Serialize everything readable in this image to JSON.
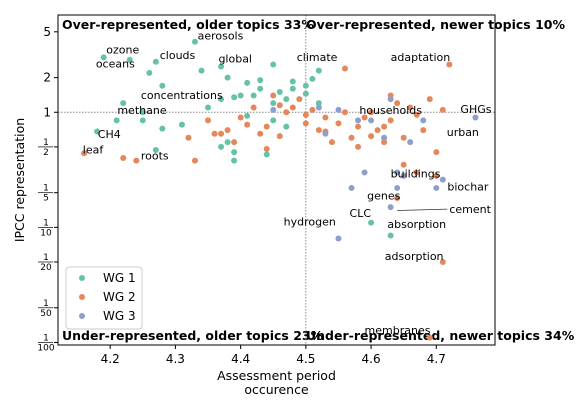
{
  "chart_data": {
    "type": "scatter",
    "xlabel": "Assessment period\noccurence",
    "ylabel": "IPCC representation",
    "xlim": [
      4.12,
      4.79
    ],
    "ylim": [
      0.0095,
      7.0
    ],
    "yscale": "log",
    "x_ticks": [
      4.2,
      4.3,
      4.4,
      4.5,
      4.6,
      4.7
    ],
    "x_tick_labels": [
      "4.2",
      "4.3",
      "4.4",
      "4.5",
      "4.6",
      "4.7"
    ],
    "y_ticks": [
      {
        "value": 5,
        "label": "5"
      },
      {
        "value": 2,
        "label": "2"
      },
      {
        "value": 1,
        "label": "1"
      },
      {
        "value": 0.5,
        "num": "1",
        "den": "2"
      },
      {
        "value": 0.2,
        "num": "1",
        "den": "5"
      },
      {
        "value": 0.1,
        "num": "1",
        "den": "10"
      },
      {
        "value": 0.05,
        "num": "1",
        "den": "20"
      },
      {
        "value": 0.02,
        "num": "1",
        "den": "50"
      },
      {
        "value": 0.01,
        "num": "1",
        "den": "100"
      }
    ],
    "reference_lines": {
      "x": 4.5,
      "y": 1
    },
    "grid": false,
    "legend_position": "lower-left",
    "quadrant_labels": [
      "Over-represented, older topics 33%",
      "Over-represented, newer topics 10%",
      "Under-represented, older topics 23%",
      "Under-represented, newer topics 34%"
    ],
    "colors": {
      "WG 1": "#66c2a5",
      "WG 2": "#e5865b",
      "WG 3": "#8da0cb"
    },
    "series": [
      {
        "name": "WG 1",
        "color": "#66c2a5",
        "points": [
          [
            4.19,
            3.0
          ],
          [
            4.23,
            2.85
          ],
          [
            4.27,
            2.75
          ],
          [
            4.26,
            2.2
          ],
          [
            4.28,
            1.7
          ],
          [
            4.33,
            4.1
          ],
          [
            4.34,
            2.3
          ],
          [
            4.37,
            2.5
          ],
          [
            4.38,
            2.0
          ],
          [
            4.41,
            1.8
          ],
          [
            4.43,
            1.9
          ],
          [
            4.45,
            2.6
          ],
          [
            4.46,
            1.5
          ],
          [
            4.48,
            1.85
          ],
          [
            4.5,
            1.7
          ],
          [
            4.52,
            2.3
          ],
          [
            4.51,
            1.95
          ],
          [
            4.22,
            1.2
          ],
          [
            4.25,
            1.0
          ],
          [
            4.28,
            0.72
          ],
          [
            4.31,
            0.78
          ],
          [
            4.35,
            1.1
          ],
          [
            4.37,
            1.3
          ],
          [
            4.39,
            1.35
          ],
          [
            4.4,
            1.4
          ],
          [
            4.42,
            1.4
          ],
          [
            4.43,
            1.6
          ],
          [
            4.45,
            1.2
          ],
          [
            4.47,
            1.3
          ],
          [
            4.48,
            1.6
          ],
          [
            4.5,
            1.45
          ],
          [
            4.52,
            1.2
          ],
          [
            4.18,
            0.68
          ],
          [
            4.21,
            0.85
          ],
          [
            4.25,
            0.85
          ],
          [
            4.37,
            0.5
          ],
          [
            4.38,
            0.55
          ],
          [
            4.39,
            0.45
          ],
          [
            4.39,
            0.38
          ],
          [
            4.44,
            0.43
          ],
          [
            4.45,
            0.85
          ],
          [
            4.47,
            0.75
          ],
          [
            4.27,
            0.47
          ],
          [
            4.41,
            0.93
          ],
          [
            4.6,
            0.11
          ],
          [
            4.63,
            0.085
          ]
        ]
      },
      {
        "name": "WG 2",
        "color": "#e5865b",
        "points": [
          [
            4.16,
            0.44
          ],
          [
            4.22,
            0.4
          ],
          [
            4.24,
            0.38
          ],
          [
            4.32,
            0.6
          ],
          [
            4.35,
            0.85
          ],
          [
            4.37,
            0.65
          ],
          [
            4.38,
            0.7
          ],
          [
            4.39,
            0.55
          ],
          [
            4.4,
            0.9
          ],
          [
            4.42,
            1.1
          ],
          [
            4.43,
            0.65
          ],
          [
            4.44,
            0.75
          ],
          [
            4.45,
            1.4
          ],
          [
            4.46,
            1.15
          ],
          [
            4.47,
            1.0
          ],
          [
            4.48,
            1.1
          ],
          [
            4.49,
            1.3
          ],
          [
            4.5,
            0.95
          ],
          [
            4.5,
            0.8
          ],
          [
            4.51,
            1.05
          ],
          [
            4.52,
            0.7
          ],
          [
            4.53,
            0.9
          ],
          [
            4.54,
            0.55
          ],
          [
            4.55,
            0.8
          ],
          [
            4.56,
            1.0
          ],
          [
            4.56,
            2.4
          ],
          [
            4.57,
            0.6
          ],
          [
            4.58,
            0.75
          ],
          [
            4.59,
            0.9
          ],
          [
            4.6,
            1.0
          ],
          [
            4.61,
            0.7
          ],
          [
            4.62,
            0.55
          ],
          [
            4.63,
            1.4
          ],
          [
            4.63,
            0.85
          ],
          [
            4.64,
            1.2
          ],
          [
            4.65,
            0.6
          ],
          [
            4.66,
            1.1
          ],
          [
            4.67,
            0.95
          ],
          [
            4.68,
            0.7
          ],
          [
            4.69,
            1.3
          ],
          [
            4.7,
            0.45
          ],
          [
            4.71,
            1.05
          ],
          [
            4.72,
            2.6
          ],
          [
            4.33,
            0.38
          ],
          [
            4.36,
            0.65
          ],
          [
            4.41,
            0.78
          ],
          [
            4.44,
            0.48
          ],
          [
            4.46,
            0.62
          ],
          [
            4.53,
            0.68
          ],
          [
            4.58,
            0.5
          ],
          [
            4.6,
            0.62
          ],
          [
            4.62,
            0.75
          ],
          [
            4.65,
            0.35
          ],
          [
            4.67,
            0.3
          ],
          [
            4.7,
            0.28
          ],
          [
            4.64,
            0.18
          ],
          [
            4.71,
            0.05
          ],
          [
            4.69,
            0.011
          ]
        ]
      },
      {
        "name": "WG 3",
        "color": "#8da0cb",
        "points": [
          [
            4.45,
            1.05
          ],
          [
            4.52,
            1.1
          ],
          [
            4.53,
            0.65
          ],
          [
            4.55,
            1.05
          ],
          [
            4.58,
            0.85
          ],
          [
            4.59,
            0.3
          ],
          [
            4.6,
            0.85
          ],
          [
            4.62,
            0.6
          ],
          [
            4.63,
            1.3
          ],
          [
            4.64,
            0.3
          ],
          [
            4.65,
            0.28
          ],
          [
            4.66,
            0.55
          ],
          [
            4.68,
            0.85
          ],
          [
            4.7,
            0.22
          ],
          [
            4.71,
            0.26
          ],
          [
            4.76,
            0.9
          ],
          [
            4.57,
            0.22
          ],
          [
            4.64,
            0.22
          ],
          [
            4.63,
            0.15
          ],
          [
            4.55,
            0.08
          ]
        ]
      }
    ],
    "annotations": [
      {
        "text": "aerosols",
        "x": 4.334,
        "y": 4.3
      },
      {
        "text": "ozone",
        "x": 4.194,
        "y": 3.25
      },
      {
        "text": "clouds",
        "x": 4.276,
        "y": 2.9
      },
      {
        "text": "global",
        "x": 4.366,
        "y": 2.7
      },
      {
        "text": "climate",
        "x": 4.486,
        "y": 2.8
      },
      {
        "text": "oceans",
        "x": 4.178,
        "y": 2.45
      },
      {
        "text": "adaptation",
        "x": 4.63,
        "y": 2.8
      },
      {
        "text": "concentrations",
        "x": 4.247,
        "y": 1.3
      },
      {
        "text": "methane",
        "x": 4.211,
        "y": 0.97
      },
      {
        "text": "households",
        "x": 4.582,
        "y": 0.97
      },
      {
        "text": "GHGs",
        "x": 4.737,
        "y": 0.99
      },
      {
        "text": "urban",
        "x": 4.716,
        "y": 0.62
      },
      {
        "text": "CH4",
        "x": 4.181,
        "y": 0.6
      },
      {
        "text": "leaf",
        "x": 4.158,
        "y": 0.44
      },
      {
        "text": "roots",
        "x": 4.247,
        "y": 0.39
      },
      {
        "text": "buildings",
        "x": 4.63,
        "y": 0.27
      },
      {
        "text": "biochar",
        "x": 4.717,
        "y": 0.21
      },
      {
        "text": "genes",
        "x": 4.594,
        "y": 0.175
      },
      {
        "text": "cement",
        "x": 4.72,
        "y": 0.133,
        "arrow_to": [
          4.64,
          0.14
        ]
      },
      {
        "text": "CLC",
        "x": 4.567,
        "y": 0.123
      },
      {
        "text": "hydrogen",
        "x": 4.466,
        "y": 0.104
      },
      {
        "text": "absorption",
        "x": 4.625,
        "y": 0.099
      },
      {
        "text": "adsorption",
        "x": 4.621,
        "y": 0.052
      },
      {
        "text": "membranes",
        "x": 4.59,
        "y": 0.0118
      }
    ]
  }
}
